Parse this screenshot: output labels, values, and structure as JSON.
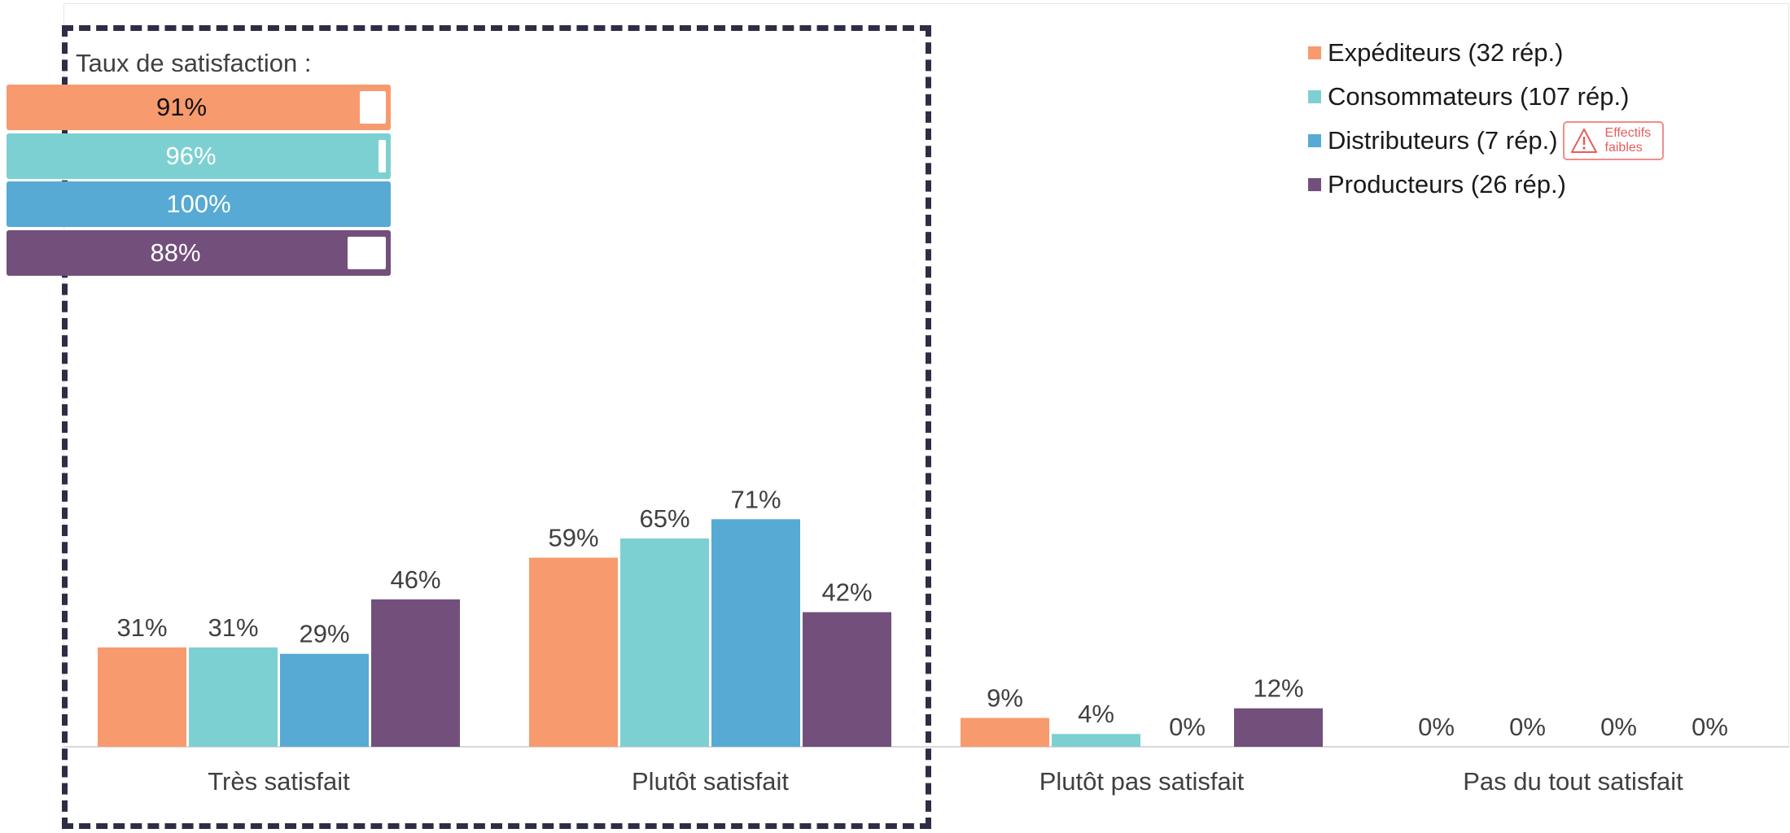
{
  "chart_data": {
    "type": "bar",
    "categories": [
      "Très satisfait",
      "Plutôt satisfait",
      "Plutôt pas satisfait",
      "Pas du tout satisfait"
    ],
    "series": [
      {
        "name": "Expéditeurs (32 rép.)",
        "color": "#f79a6e",
        "values": [
          31,
          59,
          9,
          0
        ]
      },
      {
        "name": "Consommateurs (107 rép.)",
        "color": "#7dd0d2",
        "values": [
          31,
          65,
          4,
          0
        ]
      },
      {
        "name": "Distributeurs (7 rép.)",
        "color": "#56aad4",
        "values": [
          29,
          71,
          0,
          0
        ]
      },
      {
        "name": "Producteurs (26 rép.)",
        "color": "#734f7c",
        "values": [
          46,
          42,
          12,
          0
        ]
      }
    ],
    "value_suffix": "%",
    "ylim": [
      0,
      100
    ],
    "grid": false,
    "legend_position": "top-right"
  },
  "satisfaction": {
    "title": "Taux de satisfaction :",
    "rates": [
      {
        "label": "91%",
        "value": 91,
        "color": "#f79a6e",
        "text_color": "#111111"
      },
      {
        "label": "96%",
        "value": 96,
        "color": "#7dd0d2",
        "text_color": "#ffffff"
      },
      {
        "label": "100%",
        "value": 100,
        "color": "#56aad4",
        "text_color": "#ffffff"
      },
      {
        "label": "88%",
        "value": 88,
        "color": "#734f7c",
        "text_color": "#ffffff"
      }
    ]
  },
  "legend": {
    "items": [
      {
        "label": "Expéditeurs (32 rép.)",
        "color": "#f79a6e"
      },
      {
        "label": "Consommateurs (107 rép.)",
        "color": "#7dd0d2"
      },
      {
        "label": "Distributeurs (7 rép.)",
        "color": "#56aad4"
      },
      {
        "label": "Producteurs (26 rép.)",
        "color": "#734f7c"
      }
    ],
    "warning": {
      "line1": "Effectifs",
      "line2": "faibles",
      "color": "#e85c5c",
      "icon": "warning-triangle-icon"
    }
  },
  "theme": {
    "text_color": "#404040",
    "axis_color": "#d9d9d9",
    "highlight_border": "#2d2d45"
  }
}
